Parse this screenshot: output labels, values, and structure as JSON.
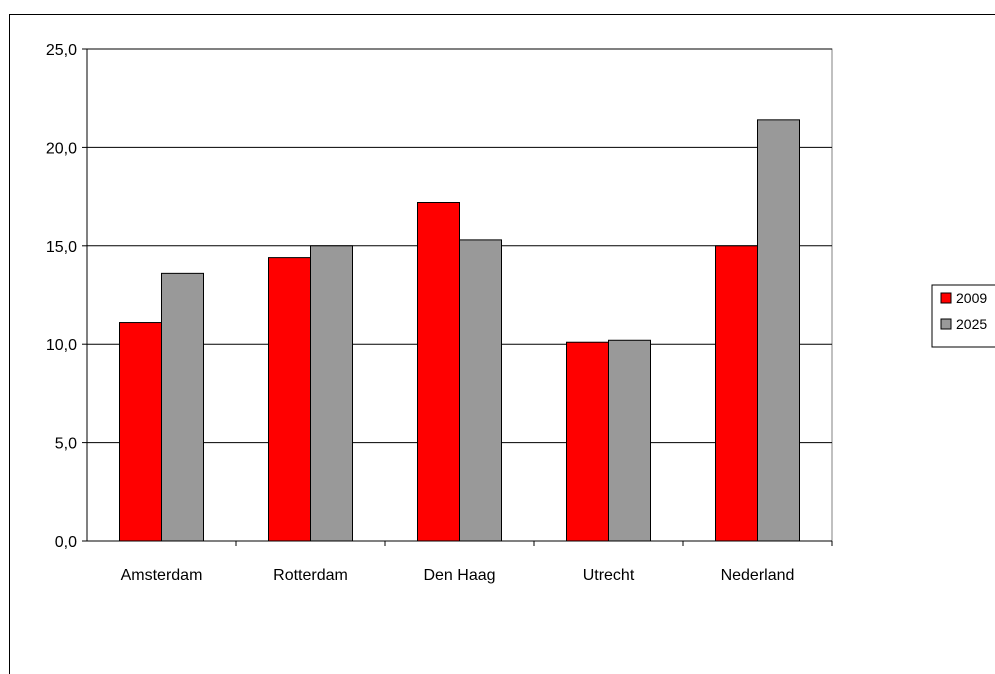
{
  "chart_data": {
    "type": "bar",
    "title": "",
    "xlabel": "",
    "ylabel": "",
    "categories": [
      "Amsterdam",
      "Rotterdam",
      "Den Haag",
      "Utrecht",
      "Nederland"
    ],
    "series": [
      {
        "name": "2009",
        "color": "#ff0000",
        "values": [
          11.1,
          14.4,
          17.2,
          10.1,
          15.0
        ]
      },
      {
        "name": "2025",
        "color": "#999999",
        "values": [
          13.6,
          15.0,
          15.3,
          10.2,
          21.4
        ]
      }
    ],
    "ylim": [
      0,
      25
    ],
    "yticks": [
      "0,0",
      "5,0",
      "10,0",
      "15,0",
      "20,0",
      "25,0"
    ],
    "ytick_values": [
      0,
      5,
      10,
      15,
      20,
      25
    ],
    "grid": true,
    "legend_position": "right"
  }
}
